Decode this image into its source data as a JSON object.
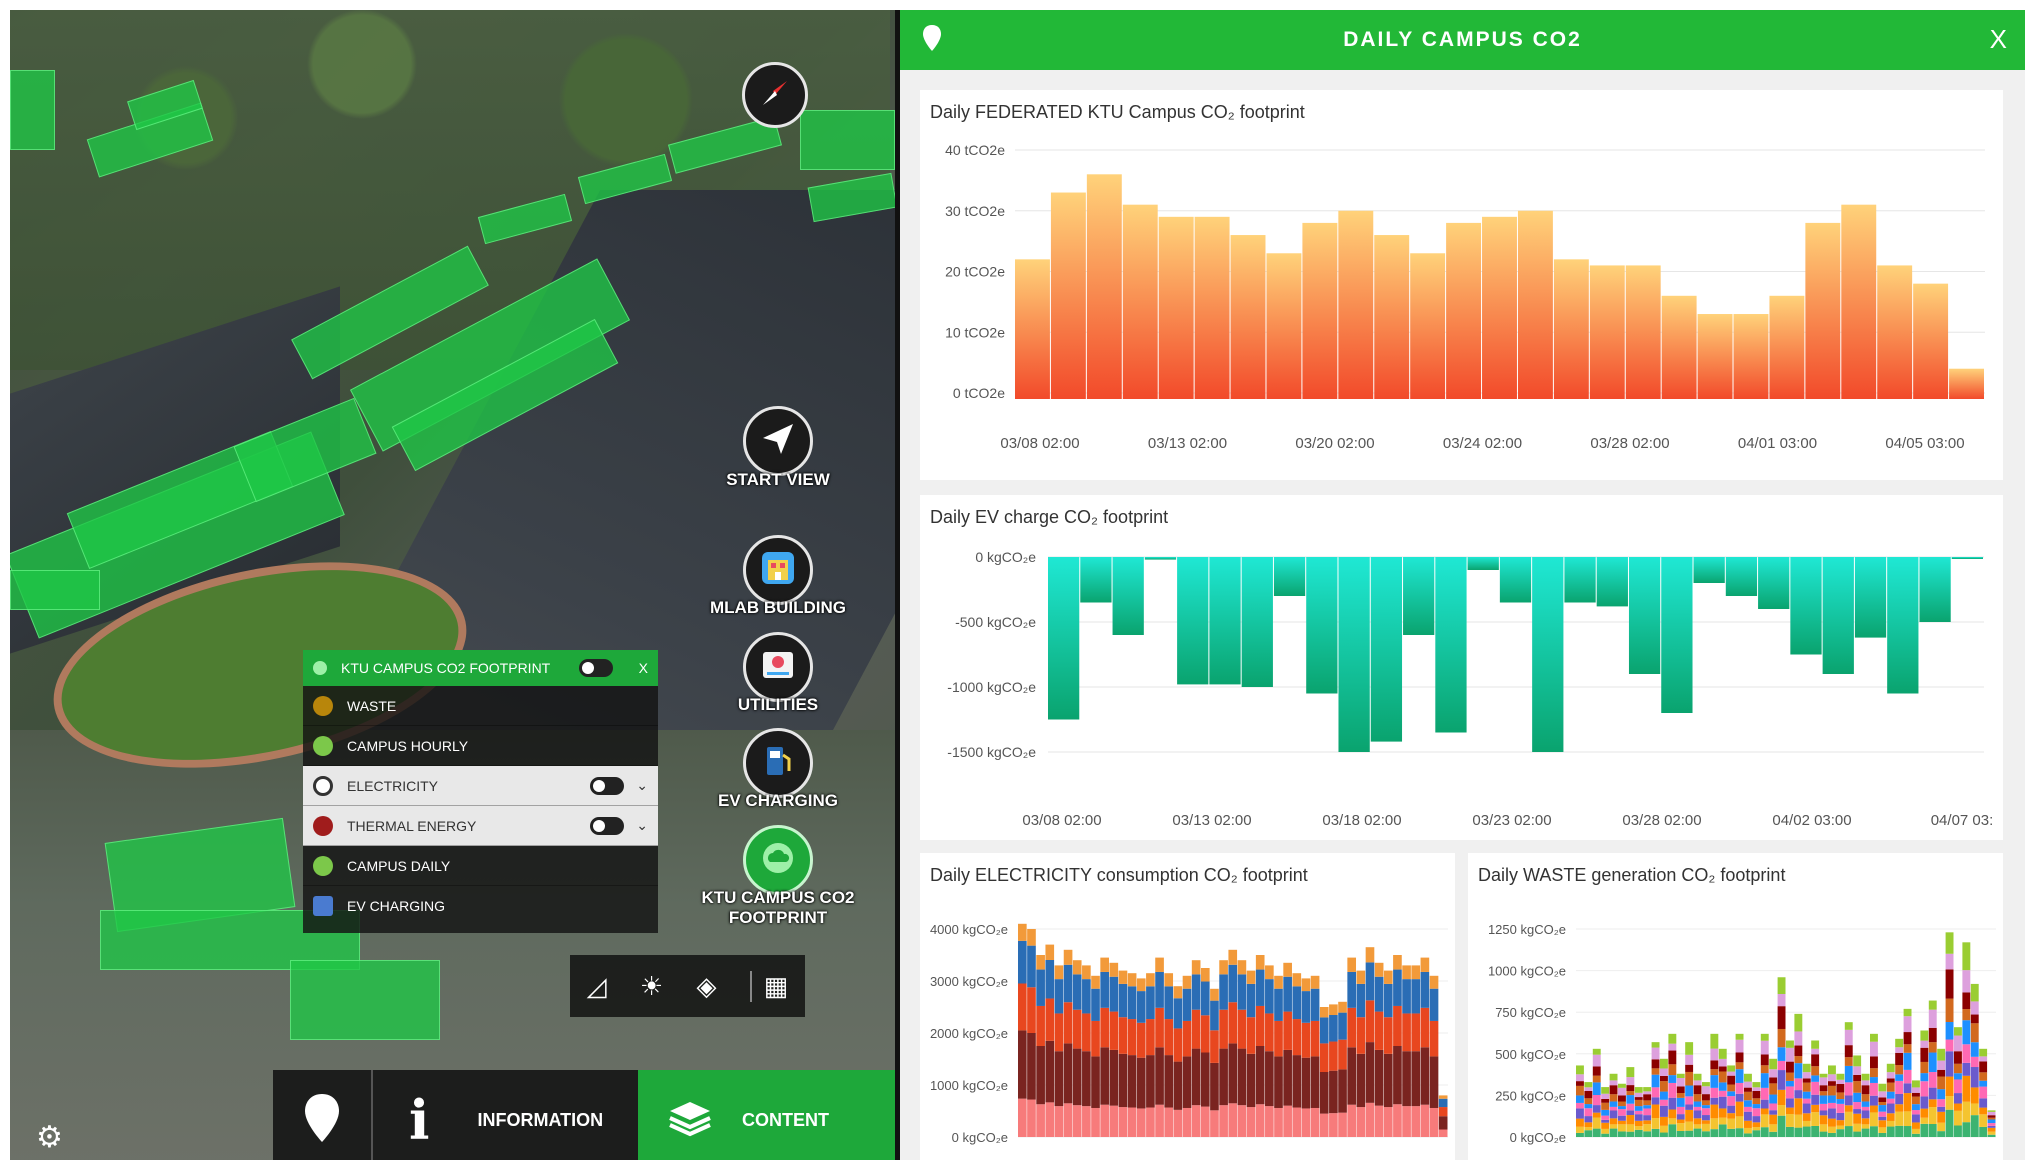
{
  "map": {
    "buttons": {
      "start_view": "START VIEW",
      "mlab_building": "MLAB BUILDING",
      "utilities": "UTILITIES",
      "ev_charging": "EV CHARGING",
      "ktu_footprint": "KTU CAMPUS CO2\nFOOTPRINT"
    },
    "layer_menu": {
      "title": "KTU CAMPUS CO2 FOOTPRINT",
      "close": "X",
      "items": [
        {
          "label": "WASTE",
          "icon_color": "#b8860b"
        },
        {
          "label": "CAMPUS HOURLY",
          "icon_color": "#7cc84a"
        },
        {
          "label": "ELECTRICITY",
          "icon_color": "#ffffff"
        },
        {
          "label": "THERMAL ENERGY",
          "icon_color": "#a01c1c"
        },
        {
          "label": "CAMPUS DAILY",
          "icon_color": "#7cc84a"
        },
        {
          "label": "EV CHARGING",
          "icon_color": "#4a7bd0"
        }
      ]
    },
    "bottom_bar": {
      "information": "INFORMATION",
      "content": "CONTENT"
    }
  },
  "dashboard": {
    "title": "DAILY CAMPUS CO2",
    "close": "X"
  },
  "chart_data": [
    {
      "type": "bar",
      "title": "Daily FEDERATED KTU Campus CO₂ footprint",
      "yticks": [
        "40 tCO2e",
        "30 tCO2e",
        "20 tCO2e",
        "10 tCO2e",
        "0 tCO2e"
      ],
      "ylim": [
        0,
        40
      ],
      "xticks": [
        "03/08 02:00",
        "03/13 02:00",
        "03/20 02:00",
        "03/24 02:00",
        "03/28 02:00",
        "04/01 03:00",
        "04/05 03:00"
      ],
      "values": [
        22,
        33,
        36,
        31,
        29,
        29,
        26,
        23,
        28,
        30,
        26,
        23,
        28,
        29,
        30,
        22,
        21,
        21,
        16,
        13,
        13,
        16,
        28,
        31,
        21,
        18,
        4
      ],
      "color_top": "#ffd27a",
      "color_bottom": "#f24a2a"
    },
    {
      "type": "bar",
      "title": "Daily EV charge CO₂ footprint",
      "yticks": [
        "0 kgCO₂e",
        "-500 kgCO₂e",
        "-1000 kgCO₂e",
        "-1500 kgCO₂e"
      ],
      "ylim": [
        -1500,
        0
      ],
      "xticks": [
        "03/08 02:00",
        "03/13 02:00",
        "03/18 02:00",
        "03/23 02:00",
        "03/28 02:00",
        "04/02 03:00",
        "04/07 03:"
      ],
      "values": [
        -1250,
        -350,
        -600,
        -20,
        -980,
        -980,
        -1000,
        -300,
        -1050,
        -1500,
        -1420,
        -600,
        -1350,
        -100,
        -350,
        -1500,
        -350,
        -380,
        -900,
        -1200,
        -200,
        -300,
        -400,
        -750,
        -900,
        -620,
        -1050,
        -500,
        -10
      ],
      "color_top": "#1fe8d4",
      "color_bottom": "#0aa36e"
    },
    {
      "type": "bar",
      "title": "Daily ELECTRICITY consumption CO₂ footprint",
      "yticks": [
        "4000 kgCO₂e",
        "3000 kgCO₂e",
        "2000 kgCO₂e",
        "1000 kgCO₂e",
        "0 kgCO₂e"
      ],
      "ylim": [
        0,
        4000
      ],
      "series_colors": [
        "#f77b7b",
        "#7a2420",
        "#e8471f",
        "#2a6db5",
        "#f29a3a"
      ],
      "totals": [
        4100,
        4000,
        3500,
        3700,
        3300,
        3600,
        3400,
        3300,
        3100,
        3450,
        3350,
        3200,
        3150,
        3050,
        3150,
        3450,
        3150,
        2900,
        3100,
        3400,
        3250,
        2850,
        3400,
        3600,
        3400,
        3200,
        3500,
        3300,
        3100,
        3350,
        3150,
        3050,
        3100,
        2500,
        2550,
        2600,
        3450,
        3200,
        3650,
        3350,
        3200,
        3500,
        3300,
        3300,
        3450,
        3100,
        800
      ]
    },
    {
      "type": "bar",
      "title": "Daily WASTE generation CO₂ footprint",
      "yticks": [
        "1250 kgCO₂e",
        "1000 kgCO₂e",
        "750 kgCO₂e",
        "500 kgCO₂e",
        "250 kgCO₂e",
        "0 kgCO₂e"
      ],
      "ylim": [
        0,
        1250
      ],
      "series_colors": [
        "#3cb371",
        "#f4c430",
        "#ff8c00",
        "#6a5acd",
        "#ff69b4",
        "#1e90ff",
        "#d2691e",
        "#8b0000",
        "#dda0dd",
        "#9acd32"
      ],
      "totals": [
        430,
        330,
        530,
        300,
        380,
        320,
        420,
        300,
        300,
        570,
        470,
        620,
        380,
        570,
        380,
        330,
        620,
        530,
        430,
        620,
        380,
        330,
        620,
        470,
        960,
        580,
        740,
        440,
        580,
        380,
        430,
        380,
        690,
        490,
        380,
        620,
        320,
        440,
        590,
        770,
        340,
        640,
        820,
        530,
        1230,
        660,
        1170,
        920,
        530,
        160
      ]
    }
  ]
}
